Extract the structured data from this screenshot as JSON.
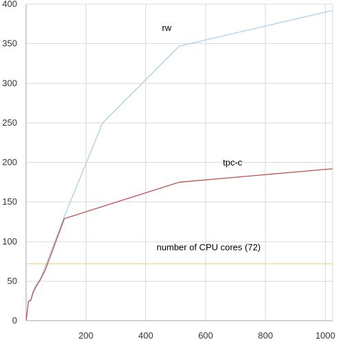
{
  "chart_data": {
    "type": "line",
    "title": "",
    "xlabel": "",
    "ylabel": "",
    "xlim": [
      0,
      1024
    ],
    "ylim": [
      0,
      400
    ],
    "x_ticks": [
      200,
      400,
      600,
      800,
      1000
    ],
    "y_ticks": [
      0,
      50,
      100,
      150,
      200,
      250,
      300,
      350,
      400
    ],
    "grid": true,
    "legend": "none",
    "series": [
      {
        "name": "rw",
        "color": "#a8d0ee",
        "x": [
          1,
          4,
          8,
          16,
          24,
          32,
          48,
          64,
          128,
          256,
          512,
          1024
        ],
        "y": [
          1,
          12,
          25,
          27,
          38,
          44,
          53,
          68,
          132,
          250,
          347,
          392
        ]
      },
      {
        "name": "tpc-c",
        "color": "#c0504d",
        "x": [
          1,
          4,
          8,
          16,
          24,
          32,
          48,
          64,
          128,
          512,
          1024
        ],
        "y": [
          1,
          12,
          24,
          26,
          36,
          42,
          52,
          64,
          129,
          175,
          192
        ]
      },
      {
        "name": "number of CPU cores (72)",
        "color": "#f3d27e",
        "x": [
          0,
          1024
        ],
        "y": [
          72,
          72
        ]
      }
    ],
    "annotations": [
      {
        "text": "rw",
        "x": 470,
        "y": 366
      },
      {
        "text": "tpc-c",
        "x": 690,
        "y": 196
      },
      {
        "text": "number of CPU cores (72)",
        "x": 610,
        "y": 89
      }
    ]
  }
}
